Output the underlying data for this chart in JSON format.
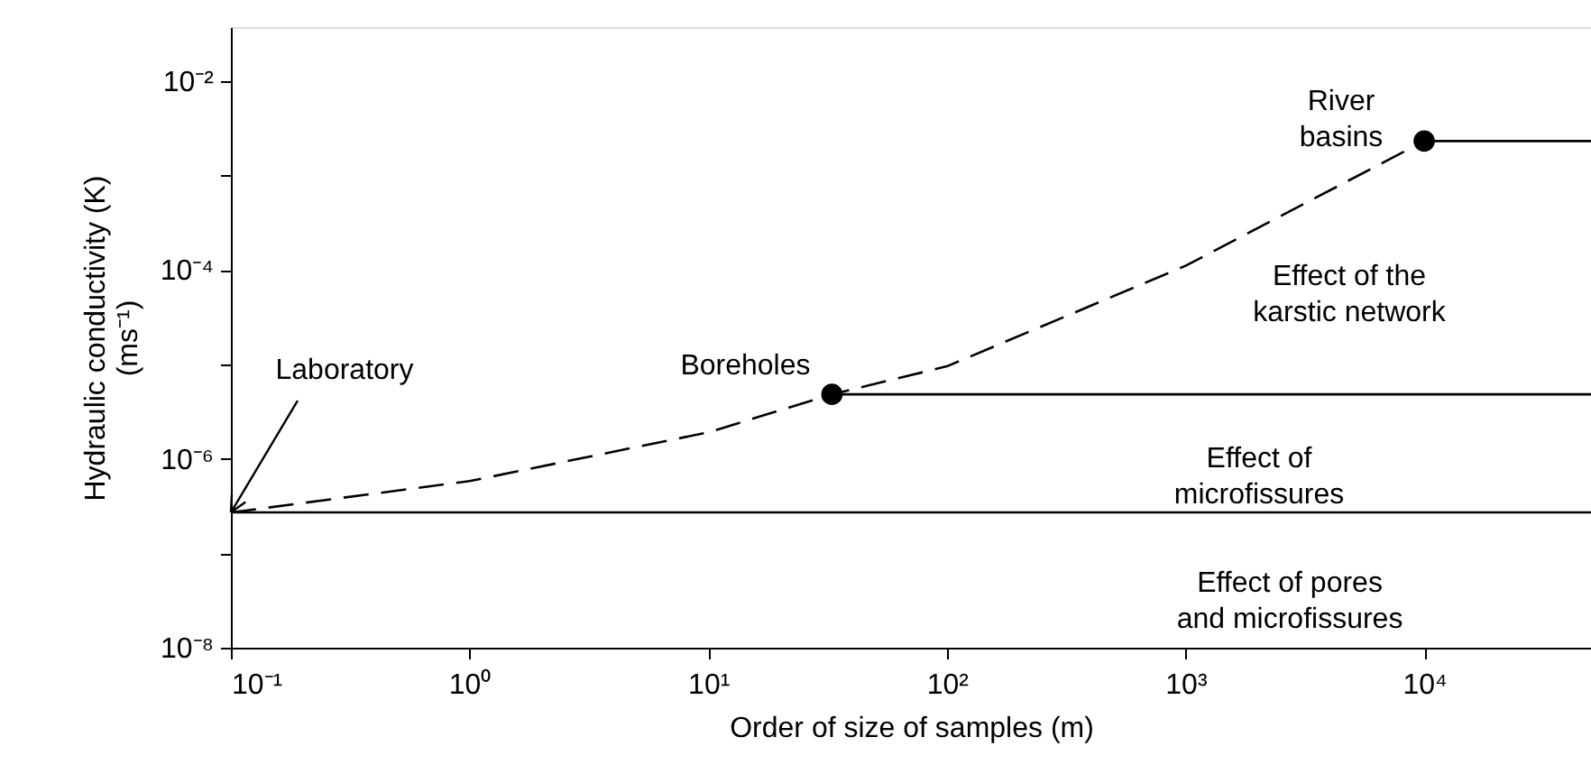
{
  "chart_data": {
    "type": "line",
    "xlabel": "Order of size of samples (m)",
    "ylabel": "Hydraulic conductivity (K)\n(ms⁻¹)",
    "log": "xy",
    "grid": false,
    "xlim": [
      0.1,
      50000
    ],
    "ylim": [
      1e-08,
      0.037
    ],
    "xticks": [
      {
        "value": 0.1,
        "label": "10⁻¹"
      },
      {
        "value": 1,
        "label": "10⁰"
      },
      {
        "value": 10,
        "label": "10¹"
      },
      {
        "value": 100,
        "label": "10²"
      },
      {
        "value": 1000,
        "label": "10³"
      },
      {
        "value": 10000,
        "label": "10⁴"
      }
    ],
    "yticks": [
      {
        "value": 1e-08,
        "label": "10⁻⁸"
      },
      {
        "value": 1e-07,
        "label": null
      },
      {
        "value": 1e-06,
        "label": "10⁻⁶"
      },
      {
        "value": 1e-05,
        "label": null
      },
      {
        "value": 0.0001,
        "label": "10⁻⁴"
      },
      {
        "value": 0.001,
        "label": null
      },
      {
        "value": 0.01,
        "label": "10⁻²"
      }
    ],
    "series": [
      {
        "line_style": "dashed",
        "color": "#000000",
        "x": [
          0.1,
          1,
          10,
          33,
          100,
          1000,
          10000
        ],
        "values": [
          2.7e-07,
          5.8e-07,
          1.9e-06,
          4.8e-06,
          9.5e-06,
          0.00011,
          0.0023
        ]
      },
      {
        "line_style": "solid",
        "color": "#000000",
        "x": [
          0.1,
          50000
        ],
        "values": [
          2.7e-07,
          2.7e-07
        ]
      },
      {
        "line_style": "solid",
        "color": "#000000",
        "x": [
          33,
          50000
        ],
        "values": [
          4.8e-06,
          4.8e-06
        ]
      },
      {
        "line_style": "solid",
        "color": "#000000",
        "x": [
          10000,
          50000
        ],
        "values": [
          0.0023,
          0.0023
        ]
      },
      {
        "type": "scatter",
        "marker": "circle",
        "color": "#000000",
        "x": [
          33,
          10000
        ],
        "values": [
          4.8e-06,
          0.0023
        ]
      }
    ],
    "annotations": [
      {
        "text": "Laboratory",
        "x": 0.1,
        "y": 2.7e-07
      },
      {
        "text": "Boreholes",
        "x": 33,
        "y": 4.8e-06
      },
      {
        "text": "River\nbasins",
        "x": 10000,
        "y": 0.0023
      },
      "Effect of the\nkarstic network",
      "Effect of\nmicrofissures",
      "Effect of pores\nand microfissures"
    ]
  }
}
